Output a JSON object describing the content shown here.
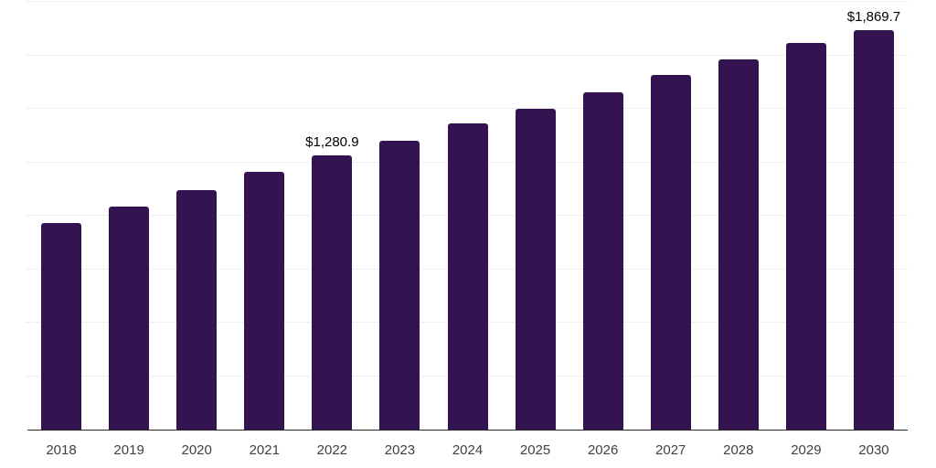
{
  "chart": {
    "background": "#ffffff",
    "bar_color": "#341450",
    "gridline_color": "#f0f0f0",
    "axis_line_color": "#262626",
    "axis_label_color": "#404040",
    "value_label_color": "#000000"
  },
  "chart_data": {
    "type": "bar",
    "title": "",
    "xlabel": "",
    "ylabel": "",
    "categories": [
      "2018",
      "2019",
      "2020",
      "2021",
      "2022",
      "2023",
      "2024",
      "2025",
      "2026",
      "2027",
      "2028",
      "2029",
      "2030"
    ],
    "values": [
      966,
      1044,
      1119,
      1207,
      1280.9,
      1352,
      1432,
      1502,
      1579,
      1659,
      1732,
      1806,
      1869.7
    ],
    "value_labels": {
      "2022": "$1,280.9",
      "2030": "$1,869.7"
    },
    "ylim": [
      0,
      2000
    ],
    "grid_step": 250,
    "grid": "horizontal-only",
    "y_tick_labels_visible": false,
    "legend": "none",
    "currency_prefix": "$"
  }
}
